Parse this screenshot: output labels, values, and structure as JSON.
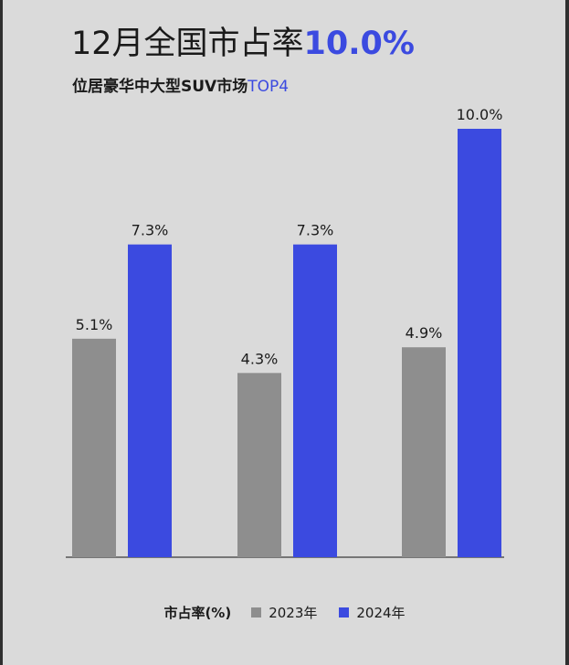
{
  "header": {
    "title_prefix": "12月全国市占率",
    "title_highlight": "10.0%",
    "subtitle_prefix": "位居豪华中大型SUV市场",
    "subtitle_highlight": "TOP4"
  },
  "legend": {
    "label": "市占率(%)",
    "items": [
      {
        "name": "2023年"
      },
      {
        "name": "2024年"
      }
    ]
  },
  "colors": {
    "series_2023": "#8e8e8e",
    "series_2024": "#3b4ae0",
    "accent": "#3b4ae0",
    "axis": "#555555"
  },
  "chart_data": {
    "type": "bar",
    "categories": [
      "",
      "",
      ""
    ],
    "series": [
      {
        "name": "2023年",
        "values": [
          5.1,
          4.3,
          4.9
        ],
        "labels": [
          "5.1%",
          "4.3%",
          "4.9%"
        ]
      },
      {
        "name": "2024年",
        "values": [
          7.3,
          7.3,
          10.0
        ],
        "labels": [
          "7.3%",
          "7.3%",
          "10.0%"
        ]
      }
    ],
    "ylim": [
      0,
      10
    ],
    "grid": false,
    "legend_position": "bottom"
  }
}
